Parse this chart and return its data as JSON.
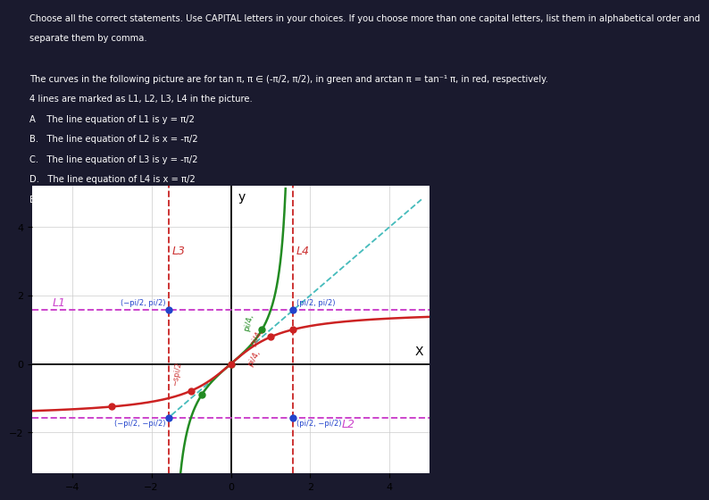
{
  "pi_half": 1.5707963267948966,
  "pi_quarter": 0.7853981633974483,
  "plot_bg": "#ffffff",
  "fig_bg": "#1a1a2e",
  "tan_color": "#228B22",
  "arctan_color": "#cc2222",
  "L1_color": "#cc44cc",
  "L2_color": "#cc44cc",
  "L3_color": "#cc3333",
  "L4_color": "#cc3333",
  "diag_color": "#44bbbb",
  "blue_dot": "#2244cc",
  "green_dot": "#228B22",
  "red_dot": "#cc2222",
  "xlim": [
    -5.0,
    5.0
  ],
  "ylim": [
    -3.2,
    5.2
  ],
  "xticks": [
    -4,
    -2,
    0,
    2,
    4
  ],
  "yticks": [
    -2,
    0,
    2,
    4
  ],
  "text_color": "#ffffff",
  "text_lines": [
    "Choose all the correct statements. Use CAPITAL letters in your choices. If you choose more than one capital letters, list them in alphabetical order and",
    "separate them by comma.",
    "",
    "The curves in the following picture are for tan x, x ∈ (-π/2, π/2), in green and arctan x = tan⁻¹ x, in red, respectively.",
    "4 lines are marked as L1, L2, L3, L4 in the picture.",
    "A    The line equation of L1 is y = π/2",
    "B.   The line equation of L2 is x = -π/2",
    "C.   The line equation of L3 is y = -π/2",
    "D.   The line equation of L4 is x = π/2",
    "E.   All of the above."
  ]
}
